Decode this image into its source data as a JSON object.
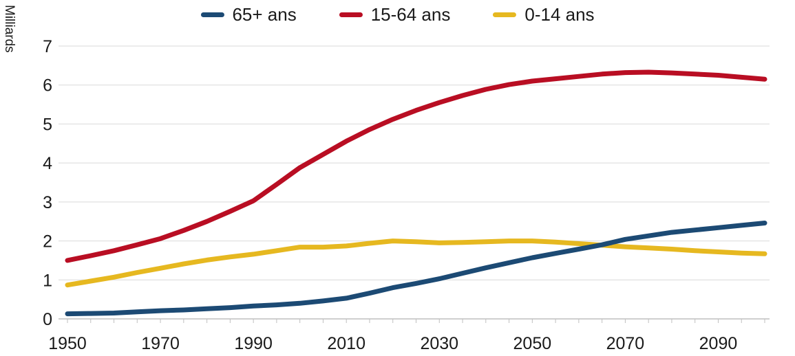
{
  "y_axis_title": "Milliards",
  "legend": {
    "items": [
      {
        "id": "65-plus",
        "label": "65+ ans",
        "color": "#1c4a74"
      },
      {
        "id": "15-64",
        "label": "15-64 ans",
        "color": "#b90e23"
      },
      {
        "id": "0-14",
        "label": "0-14 ans",
        "color": "#e6b820"
      }
    ]
  },
  "colors": {
    "background": "#ffffff",
    "gridline": "#d9d9d9",
    "axis": "#bfbfbf",
    "text": "#1a1a1a",
    "series_65_plus": "#1c4a74",
    "series_15_64": "#b90e23",
    "series_0_14": "#e6b820"
  },
  "chart_data": {
    "type": "line",
    "title": "",
    "xlabel": "",
    "ylabel": "Milliards",
    "ylim": [
      0,
      7
    ],
    "xlim": [
      1950,
      2100
    ],
    "yticks": [
      0,
      1,
      2,
      3,
      4,
      5,
      6,
      7
    ],
    "xticks": [
      1950,
      1970,
      1990,
      2010,
      2030,
      2050,
      2070,
      2090
    ],
    "x_minor_step": 5,
    "grid": "horizontal",
    "legend_position": "top-center",
    "x": [
      1950,
      1955,
      1960,
      1965,
      1970,
      1975,
      1980,
      1985,
      1990,
      1995,
      2000,
      2005,
      2010,
      2015,
      2020,
      2025,
      2030,
      2035,
      2040,
      2045,
      2050,
      2055,
      2060,
      2065,
      2070,
      2075,
      2080,
      2085,
      2090,
      2095,
      2100
    ],
    "series": [
      {
        "id": "15-64",
        "name": "15-64 ans",
        "color": "#b90e23",
        "values": [
          1.5,
          1.62,
          1.75,
          1.9,
          2.06,
          2.27,
          2.5,
          2.76,
          3.03,
          3.45,
          3.88,
          4.22,
          4.56,
          4.86,
          5.12,
          5.35,
          5.55,
          5.73,
          5.89,
          6.01,
          6.1,
          6.16,
          6.22,
          6.28,
          6.32,
          6.33,
          6.31,
          6.28,
          6.25,
          6.2,
          6.15
        ]
      },
      {
        "id": "0-14",
        "name": "0-14 ans",
        "color": "#e6b820",
        "values": [
          0.87,
          0.97,
          1.07,
          1.19,
          1.3,
          1.41,
          1.51,
          1.59,
          1.66,
          1.75,
          1.84,
          1.84,
          1.87,
          1.94,
          2.0,
          1.98,
          1.95,
          1.96,
          1.98,
          2.0,
          2.0,
          1.97,
          1.93,
          1.89,
          1.85,
          1.82,
          1.79,
          1.75,
          1.72,
          1.69,
          1.67
        ]
      },
      {
        "id": "65-plus",
        "name": "65+ ans",
        "color": "#1c4a74",
        "values": [
          0.13,
          0.14,
          0.15,
          0.18,
          0.21,
          0.23,
          0.26,
          0.29,
          0.33,
          0.36,
          0.4,
          0.46,
          0.53,
          0.66,
          0.8,
          0.91,
          1.03,
          1.17,
          1.31,
          1.44,
          1.57,
          1.68,
          1.79,
          1.9,
          2.04,
          2.13,
          2.22,
          2.28,
          2.34,
          2.4,
          2.46
        ]
      }
    ]
  }
}
